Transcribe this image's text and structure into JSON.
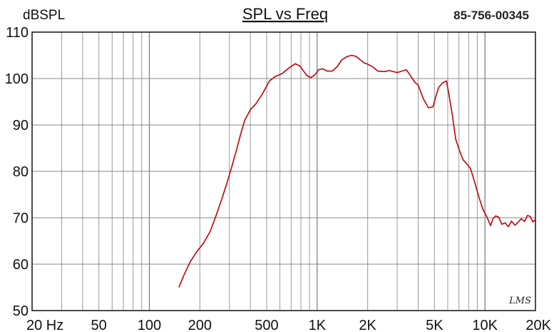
{
  "chart_data": {
    "type": "line",
    "title": "SPL vs Freq",
    "ylabel": "dBSPL",
    "part_number": "85-756-00345",
    "watermark": "LMS",
    "x_scale": "log",
    "xlim": [
      20,
      20000
    ],
    "ylim": [
      50,
      110
    ],
    "x_ticks": [
      {
        "value": 20,
        "label": "20  Hz"
      },
      {
        "value": 50,
        "label": "50"
      },
      {
        "value": 100,
        "label": "100"
      },
      {
        "value": 200,
        "label": "200"
      },
      {
        "value": 500,
        "label": "500"
      },
      {
        "value": 1000,
        "label": "1K"
      },
      {
        "value": 2000,
        "label": "2K"
      },
      {
        "value": 5000,
        "label": "5K"
      },
      {
        "value": 10000,
        "label": "10K"
      },
      {
        "value": 20000,
        "label": "20K"
      }
    ],
    "y_ticks": [
      {
        "value": 110,
        "label": "110"
      },
      {
        "value": 100,
        "label": "100"
      },
      {
        "value": 90,
        "label": "90"
      },
      {
        "value": 80,
        "label": "80"
      },
      {
        "value": 70,
        "label": "70"
      },
      {
        "value": 60,
        "label": "60"
      },
      {
        "value": 50,
        "label": "50"
      }
    ],
    "grid": true,
    "series": [
      {
        "color": "#c0000a",
        "x": [
          150,
          160,
          175,
          190,
          210,
          230,
          250,
          270,
          290,
          310,
          330,
          350,
          370,
          400,
          430,
          470,
          520,
          560,
          620,
          680,
          740,
          790,
          830,
          870,
          920,
          970,
          1020,
          1080,
          1150,
          1230,
          1320,
          1400,
          1500,
          1600,
          1700,
          1800,
          1900,
          2000,
          2150,
          2300,
          2500,
          2700,
          3000,
          3200,
          3400,
          3600,
          3800,
          4000,
          4300,
          4600,
          4900,
          5100,
          5300,
          5600,
          5900,
          6100,
          6400,
          6700,
          7000,
          7400,
          7800,
          8200,
          8700,
          9200,
          9700,
          10300,
          10800,
          11200,
          11600,
          12100,
          12600,
          13200,
          13800,
          14400,
          15100,
          15800,
          16500,
          17200,
          17900,
          18600,
          19300,
          20000
        ],
        "y": [
          55,
          57.5,
          60.5,
          62.5,
          64.5,
          67,
          70.5,
          74,
          77.5,
          81,
          84.5,
          88,
          91,
          93.3,
          94.5,
          96.6,
          99.5,
          100.4,
          101.1,
          102.3,
          103.2,
          102.7,
          101.6,
          100.6,
          100.2,
          100.8,
          101.9,
          102.1,
          101.6,
          101.6,
          102.6,
          104,
          104.7,
          105,
          104.8,
          104.1,
          103.4,
          103.1,
          102.5,
          101.6,
          101.5,
          101.7,
          101.3,
          101.6,
          101.9,
          100.6,
          99.3,
          98.6,
          95.6,
          93.7,
          93.9,
          96.2,
          98.1,
          99.1,
          99.5,
          96.6,
          92,
          86.9,
          84.8,
          82.5,
          81.6,
          80.6,
          77.6,
          74.5,
          71.9,
          70.1,
          68.3,
          69.9,
          70.4,
          70.1,
          68.6,
          68.9,
          68.1,
          69.3,
          68.4,
          69.1,
          69.8,
          69.2,
          70.5,
          70.3,
          69.1,
          69.6
        ]
      }
    ]
  }
}
